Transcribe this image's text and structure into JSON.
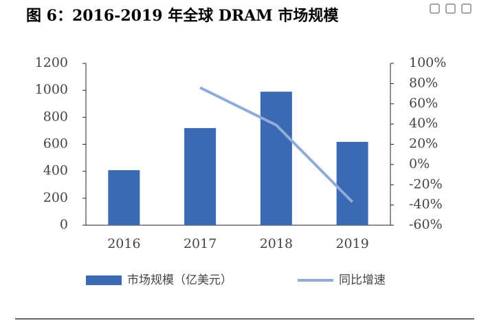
{
  "chart_data": {
    "type": "bar",
    "title": "图 6：2016-2019 年全球 DRAM 市场规模",
    "categories": [
      "2016",
      "2017",
      "2018",
      "2019"
    ],
    "series": [
      {
        "name": "市场规模（亿美元）",
        "type": "bar",
        "color": "#3c6ab2",
        "values": [
          408,
          720,
          990,
          618
        ]
      },
      {
        "name": "同比增速",
        "type": "line",
        "color": "#8eabdc",
        "axis": "y2",
        "values": [
          null,
          76,
          39,
          -37
        ]
      }
    ],
    "ylim": [
      0,
      1200
    ],
    "yticks": [
      0,
      200,
      400,
      600,
      800,
      1000,
      1200
    ],
    "y2lim": [
      -60,
      100
    ],
    "y2ticks": [
      {
        "value": -60,
        "label": "-60%"
      },
      {
        "value": -40,
        "label": "-40%"
      },
      {
        "value": -20,
        "label": "-20%"
      },
      {
        "value": 0,
        "label": "0%"
      },
      {
        "value": 20,
        "label": "20%"
      },
      {
        "value": 40,
        "label": "40%"
      },
      {
        "value": 60,
        "label": "60%"
      },
      {
        "value": 80,
        "label": "80%"
      },
      {
        "value": 100,
        "label": "100%"
      }
    ]
  }
}
